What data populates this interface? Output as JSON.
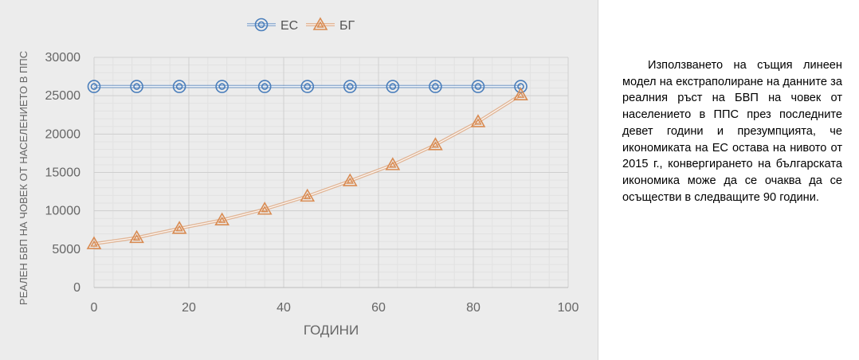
{
  "colors": {
    "es_series": "#4a7ebb",
    "bg_series": "#d98b52",
    "panel_background": "#ececec",
    "grid": "#d4d4d4",
    "axis_text": "#666666"
  },
  "chart_data": {
    "type": "line",
    "title": "",
    "xlabel": "ГОДИНИ",
    "ylabel": "РЕАЛЕН БВП НА ЧОВЕК ОТ НАСЕЛЕНИЕТО В ППС",
    "xlim": [
      0,
      100
    ],
    "ylim": [
      0,
      30000
    ],
    "x_ticks": [
      "0",
      "20",
      "40",
      "60",
      "80",
      "100"
    ],
    "y_ticks": [
      "0",
      "5000",
      "10000",
      "15000",
      "20000",
      "25000",
      "30000"
    ],
    "grid": true,
    "legend_position": "top",
    "series": [
      {
        "name": "ЕС",
        "marker": "circle",
        "color": "#4a7ebb",
        "x": [
          0,
          9,
          18,
          27,
          36,
          45,
          54,
          63,
          72,
          81,
          90
        ],
        "y": [
          26200,
          26200,
          26200,
          26200,
          26200,
          26200,
          26200,
          26200,
          26200,
          26200,
          26200
        ]
      },
      {
        "name": "БГ",
        "marker": "triangle",
        "color": "#d98b52",
        "x": [
          0,
          9,
          18,
          27,
          36,
          45,
          54,
          63,
          72,
          81,
          90
        ],
        "y": [
          5700,
          6500,
          7700,
          8800,
          10200,
          11900,
          13900,
          16000,
          18600,
          21600,
          25100
        ]
      }
    ]
  },
  "side_text": "Използването на същия линеен модел на екстраполиране на данните за реалния ръст на БВП на човек от населението в ППС през последните девет години и презумпцията, че икономиката на ЕС остава на нивото от 2015 г., конвергирането на българската икономика може да се очаква да се осъществи в следващите 90 години."
}
